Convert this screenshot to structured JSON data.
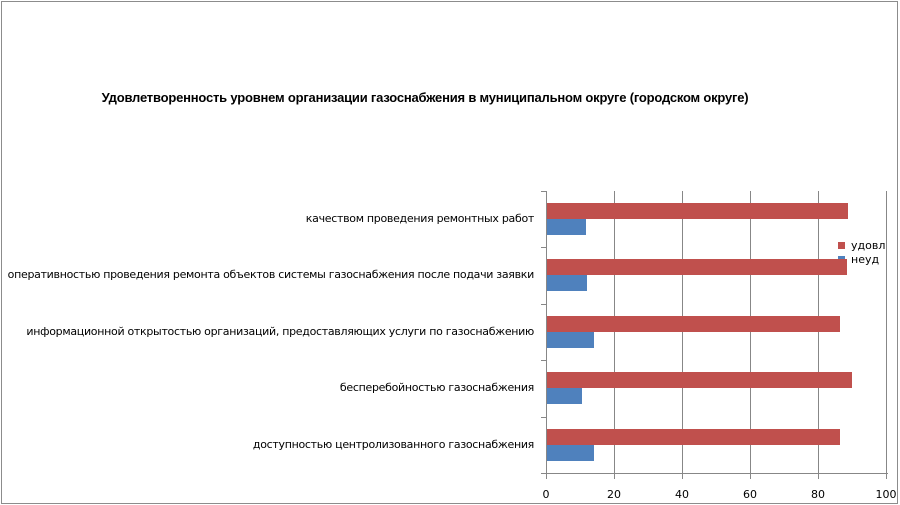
{
  "chart_data": {
    "type": "bar",
    "orientation": "horizontal",
    "title": "Удовлетворенность уровнем организации газоснабжения в муниципальном округе (городском округе)",
    "xlabel": "",
    "ylabel": "",
    "xlim": [
      0,
      100
    ],
    "x_ticks": [
      0,
      20,
      40,
      60,
      80,
      100
    ],
    "grid": true,
    "legend_position": "right",
    "categories": [
      "качеством проведения ремонтных работ",
      "оперативностью проведения ремонта объектов системы газоснабжения после подачи заявки",
      "информационной открытостью организаций, предоставляющих услуги по газоснабжению",
      "бесперебойностью газоснабжения",
      "доступностью центролизованного газоснабжения"
    ],
    "series": [
      {
        "name": "удовл",
        "color": "#c0504d",
        "values": [
          88.5,
          88.2,
          86.1,
          89.7,
          86.1
        ]
      },
      {
        "name": "неуд",
        "color": "#4f81bd",
        "values": [
          11.5,
          11.8,
          13.9,
          10.3,
          13.9
        ]
      }
    ]
  },
  "legend": {
    "items": [
      {
        "label": "удовл",
        "color": "#c0504d"
      },
      {
        "label": "неуд",
        "color": "#4f81bd"
      }
    ]
  },
  "axis": {
    "x_tick_labels": [
      "0",
      "20",
      "40",
      "60",
      "80",
      "100"
    ]
  }
}
